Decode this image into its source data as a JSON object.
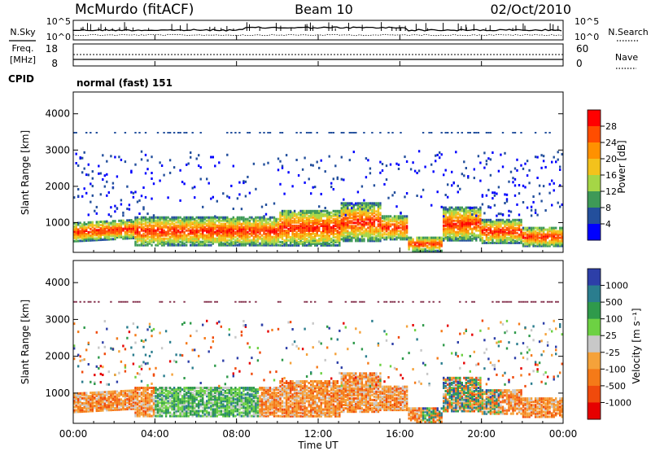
{
  "header": {
    "station": "McMurdo (fitACF)",
    "beam": "Beam 10",
    "date": "02/Oct/2010"
  },
  "top_panels": {
    "nsky_label": "N.Sky",
    "nsky_ticks": [
      "10^5",
      "10^0"
    ],
    "nsearch_label": "N.Search",
    "nsearch_ticks": [
      "10^5",
      "10^0"
    ],
    "freq_label": "Freq.",
    "freq_unit": "[MHz]",
    "freq_ticks": [
      "18",
      "8"
    ],
    "nave_label": "Nave",
    "nave_ticks": [
      "60",
      "0"
    ],
    "cpid_label": "CPID",
    "cpid_value": "normal (fast) 151"
  },
  "chart_data": [
    {
      "type": "heatmap",
      "name": "power",
      "ylabel": "Slant Range [km]",
      "ylim": [
        180,
        4600
      ],
      "yticks": [
        "4000",
        "3000",
        "2000",
        "1000"
      ],
      "colorbar_label": "Power [dB]",
      "colorbar_ticks": [
        "28",
        "24",
        "20",
        "16",
        "12",
        "8",
        "4"
      ],
      "colorbar_colors": [
        "#ff0000",
        "#ff4d00",
        "#ff9100",
        "#f3c21c",
        "#a5d646",
        "#3e9957",
        "#234f9c",
        "#0000ff"
      ]
    },
    {
      "type": "heatmap",
      "name": "velocity",
      "ylabel": "Slant Range [km]",
      "ylim": [
        180,
        4600
      ],
      "yticks": [
        "4000",
        "3000",
        "2000",
        "1000"
      ],
      "colorbar_label": "Velocity [m s⁻¹]",
      "colorbar_ticks": [
        "1000",
        "500",
        "100",
        "25",
        "-25",
        "-100",
        "-500",
        "-1000"
      ],
      "colorbar_colors": [
        "#2d3fa8",
        "#2a7d8e",
        "#2f9a4b",
        "#6dd143",
        "#c8c8c8",
        "#f5a23a",
        "#f57a18",
        "#f04a0c",
        "#e60000"
      ]
    }
  ],
  "x_axis": {
    "xlabel": "Time UT",
    "xticks": [
      "00:00",
      "04:00",
      "08:00",
      "12:00",
      "16:00",
      "20:00",
      "00:00"
    ]
  }
}
